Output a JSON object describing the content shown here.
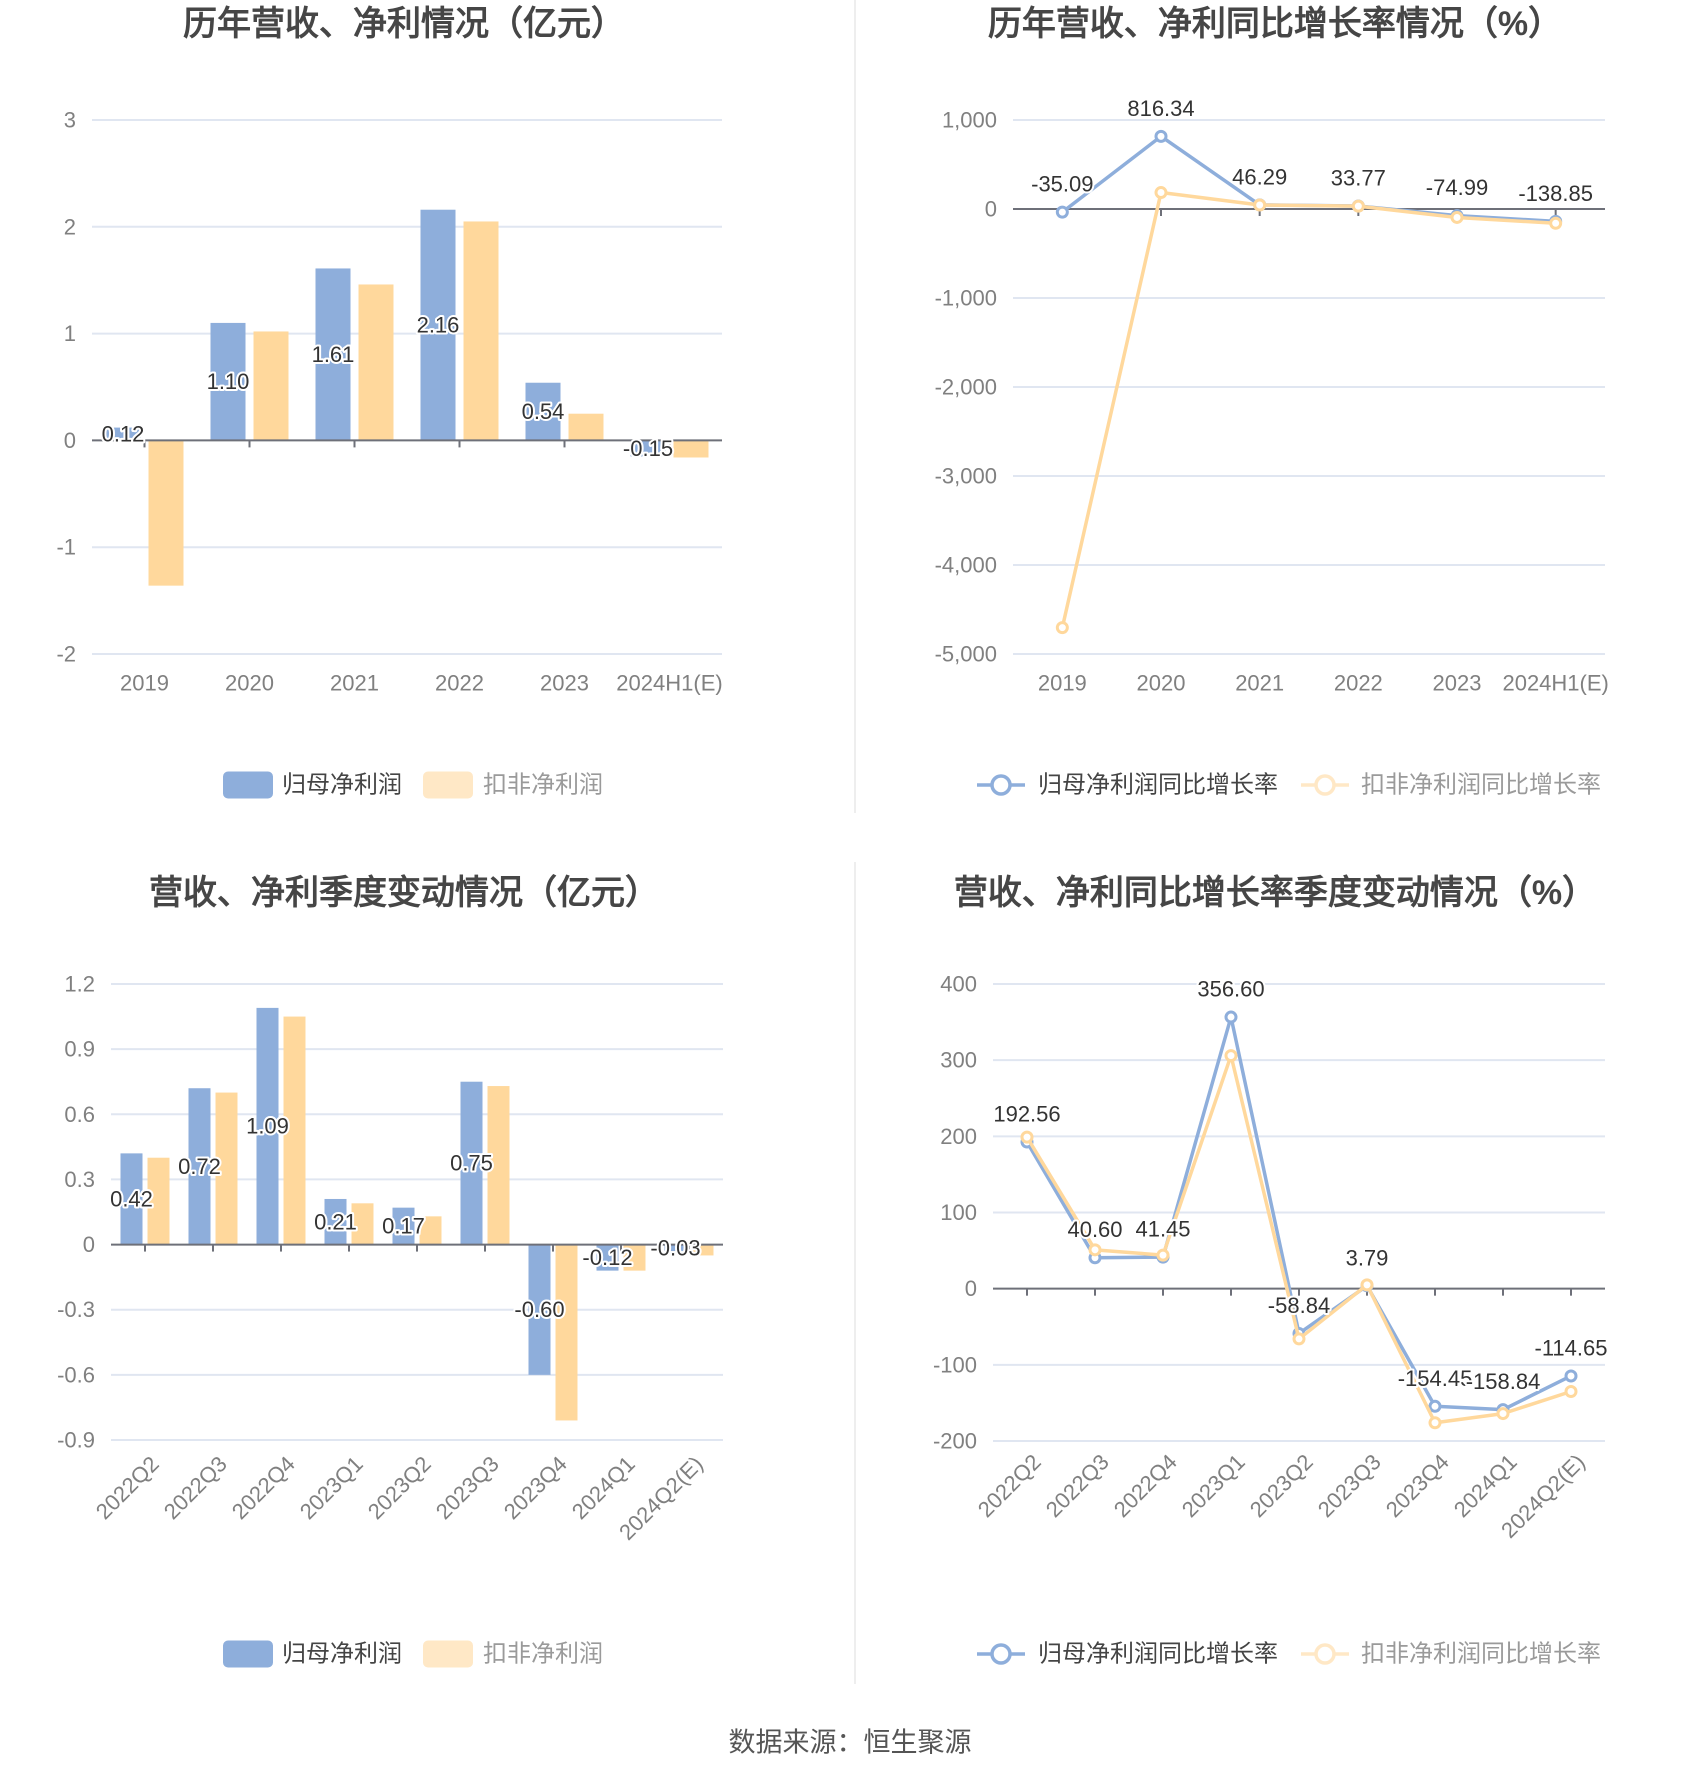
{
  "page": {
    "source": "数据来源：恒生聚源"
  },
  "colors": {
    "series_primary": "#8eaedb",
    "series_secondary": "#ffd89c",
    "legend_secondary_swatch": "#ffe8c6",
    "legend_primary_text": "#444444",
    "legend_secondary_text": "#9a9a9a",
    "grid": "#e0e6f1",
    "axis": "#6e7079",
    "title": "#464646",
    "data_label": "#333333"
  },
  "chart_data": [
    {
      "id": "annual-net-profit",
      "type": "bar",
      "title": "历年营收、净利情况（亿元）",
      "xlabel": "",
      "ylabel": "",
      "categories": [
        "2019",
        "2020",
        "2021",
        "2022",
        "2023",
        "2024H1(E)"
      ],
      "series": [
        {
          "name": "归母净利润",
          "values": [
            0.12,
            1.1,
            1.61,
            2.16,
            0.54,
            -0.15
          ],
          "labels": [
            "0.12",
            "1.10",
            "1.61",
            "2.16",
            "0.54",
            "-0.15"
          ]
        },
        {
          "name": "扣非净利润",
          "values": [
            -1.36,
            1.02,
            1.46,
            2.05,
            0.25,
            -0.16
          ]
        }
      ],
      "ylim": [
        -2,
        3
      ],
      "yticks": [
        3,
        2,
        1,
        0,
        -1,
        -2
      ],
      "ytick_labels": [
        "3",
        "2",
        "1",
        "0",
        "-1",
        "-2"
      ],
      "grid": true,
      "legend_position": "bottom"
    },
    {
      "id": "annual-growth-rate",
      "type": "line",
      "title": "历年营收、净利同比增长率情况（%）",
      "xlabel": "",
      "ylabel": "",
      "categories": [
        "2019",
        "2020",
        "2021",
        "2022",
        "2023",
        "2024H1(E)"
      ],
      "series": [
        {
          "name": "归母净利润同比增长率",
          "values": [
            -35.09,
            816.34,
            46.29,
            33.77,
            -74.99,
            -138.85
          ],
          "labels": [
            "-35.09",
            "816.34",
            "46.29",
            "33.77",
            "-74.99",
            "-138.85"
          ]
        },
        {
          "name": "扣非净利润同比增长率",
          "values": [
            -4704,
            185,
            45,
            32,
            -95,
            -160
          ]
        }
      ],
      "ylim": [
        -5000,
        1000
      ],
      "yticks": [
        1000,
        0,
        -1000,
        -2000,
        -3000,
        -4000,
        -5000
      ],
      "ytick_labels": [
        "1,000",
        "0",
        "-1,000",
        "-2,000",
        "-3,000",
        "-4,000",
        "-5,000"
      ],
      "grid": true,
      "legend_position": "bottom"
    },
    {
      "id": "quarterly-net-profit",
      "type": "bar",
      "title": "营收、净利季度变动情况（亿元）",
      "xlabel": "",
      "ylabel": "",
      "categories": [
        "2022Q2",
        "2022Q3",
        "2022Q4",
        "2023Q1",
        "2023Q2",
        "2023Q3",
        "2023Q4",
        "2024Q1",
        "2024Q2(E)"
      ],
      "series": [
        {
          "name": "归母净利润",
          "values": [
            0.42,
            0.72,
            1.09,
            0.21,
            0.17,
            0.75,
            -0.6,
            -0.12,
            -0.03
          ],
          "labels": [
            "0.42",
            "0.72",
            "1.09",
            "0.21",
            "0.17",
            "0.75",
            "-0.60",
            "-0.12",
            "-0.03"
          ]
        },
        {
          "name": "扣非净利润",
          "values": [
            0.4,
            0.7,
            1.05,
            0.19,
            0.13,
            0.73,
            -0.81,
            -0.12,
            -0.05
          ]
        }
      ],
      "ylim": [
        -0.9,
        1.2
      ],
      "yticks": [
        1.2,
        0.9,
        0.6,
        0.3,
        0,
        -0.3,
        -0.6,
        -0.9
      ],
      "ytick_labels": [
        "1.2",
        "0.9",
        "0.6",
        "0.3",
        "0",
        "-0.3",
        "-0.6",
        "-0.9"
      ],
      "grid": true,
      "legend_position": "bottom"
    },
    {
      "id": "quarterly-growth-rate",
      "type": "line",
      "title": "营收、净利同比增长率季度变动情况（%）",
      "xlabel": "",
      "ylabel": "",
      "categories": [
        "2022Q2",
        "2022Q3",
        "2022Q4",
        "2023Q1",
        "2023Q2",
        "2023Q3",
        "2023Q4",
        "2024Q1",
        "2024Q2(E)"
      ],
      "series": [
        {
          "name": "归母净利润同比增长率",
          "values": [
            192.56,
            40.6,
            41.45,
            356.6,
            -58.84,
            3.79,
            -154.45,
            -158.84,
            -114.65
          ],
          "labels": [
            "192.56",
            "40.60",
            "41.45",
            "356.60",
            "-58.84",
            "3.79",
            "-154.45",
            "-158.84",
            "-114.65"
          ]
        },
        {
          "name": "扣非净利润同比增长率",
          "values": [
            199,
            51,
            44,
            306,
            -66,
            5,
            -176,
            -164,
            -135
          ]
        }
      ],
      "ylim": [
        -200,
        400
      ],
      "yticks": [
        400,
        300,
        200,
        100,
        0,
        -100,
        -200
      ],
      "ytick_labels": [
        "400",
        "300",
        "200",
        "100",
        "0",
        "-100",
        "-200"
      ],
      "grid": true,
      "legend_position": "bottom"
    }
  ]
}
